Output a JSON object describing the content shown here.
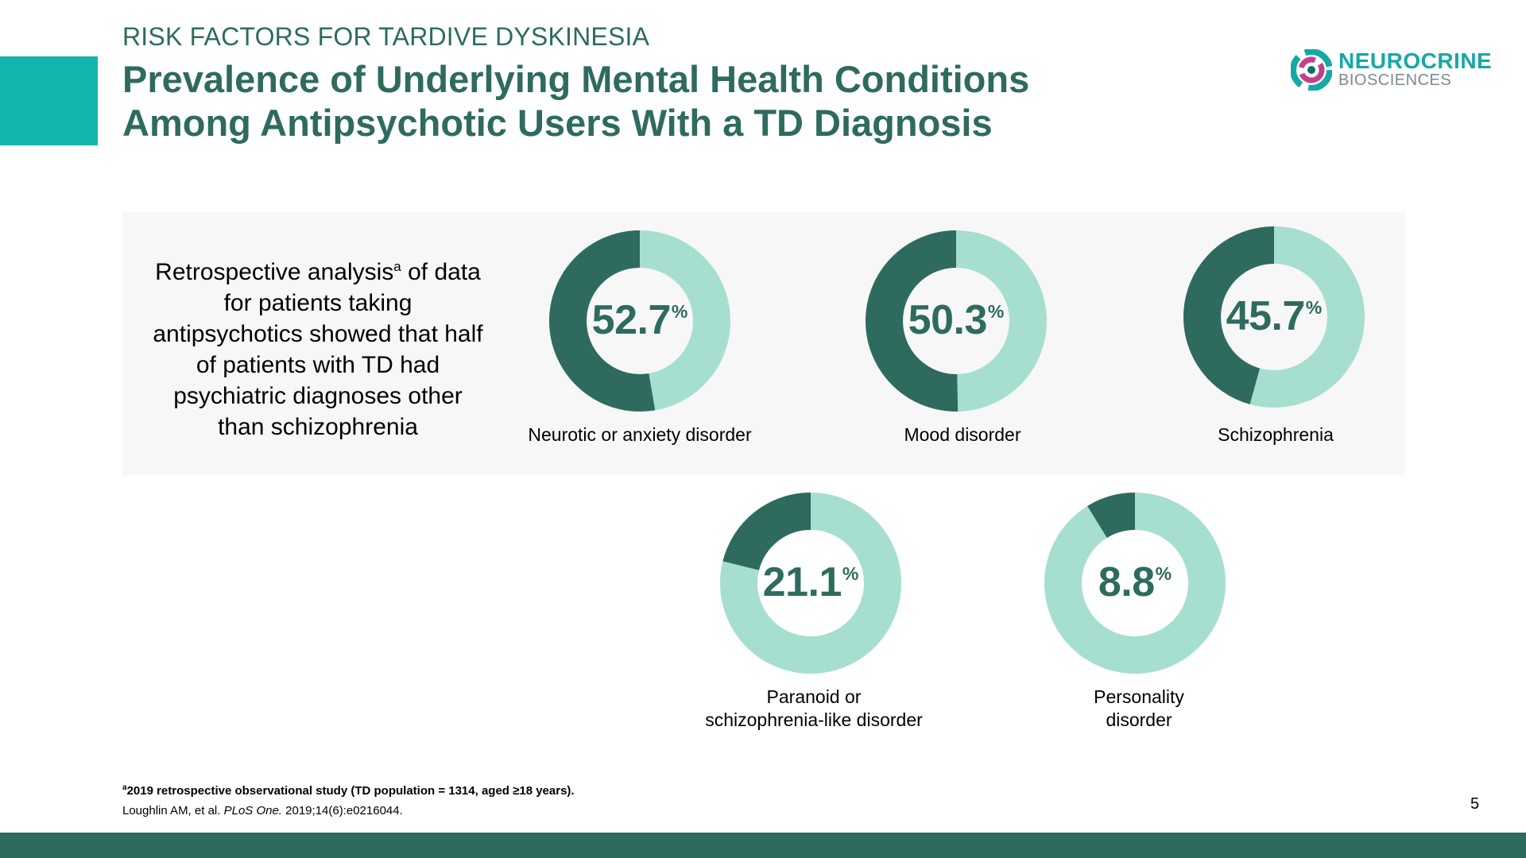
{
  "header": {
    "overline": "RISK FACTORS FOR TARDIVE DYSKINESIA",
    "title_line1": "Prevalence of Underlying Mental Health Conditions",
    "title_line2": "Among Antipsychotic Users With a TD Diagnosis"
  },
  "logo": {
    "name": "NEUROCRINE",
    "sub": "BIOSCIENCES"
  },
  "intro": {
    "text_before": "Retrospective analysis",
    "superscript": "a",
    "text_after": " of data for patients taking antipsychotics showed that half of patients with TD had psychiatric diagnoses other than schizophrenia"
  },
  "colors": {
    "filled": "#2e6b5e",
    "remainder": "#a6dfd0",
    "accent": "#12b5ad",
    "panel": "#f7f7f7"
  },
  "chart_data": {
    "type": "pie",
    "subtype": "donut",
    "unit": "%",
    "percent_symbol": "%",
    "items": [
      {
        "label_lines": [
          "Neurotic or anxiety disorder"
        ],
        "value": 52.7,
        "value_text": "52.7"
      },
      {
        "label_lines": [
          "Mood disorder"
        ],
        "value": 50.3,
        "value_text": "50.3"
      },
      {
        "label_lines": [
          "Schizophrenia"
        ],
        "value": 45.7,
        "value_text": "45.7"
      },
      {
        "label_lines": [
          "Paranoid or",
          "schizophrenia-like disorder"
        ],
        "value": 21.1,
        "value_text": "21.1"
      },
      {
        "label_lines": [
          "Personality",
          "disorder"
        ],
        "value": 8.8,
        "value_text": "8.8"
      }
    ]
  },
  "footnotes": {
    "note_marker": "a",
    "note_text": "2019 retrospective observational study (TD population = 1314, aged ≥18 years).",
    "citation_authors": "Loughlin AM, et al. ",
    "citation_journal": "PLoS One.",
    "citation_rest": " 2019;14(6):e0216044."
  },
  "page_number": "5"
}
